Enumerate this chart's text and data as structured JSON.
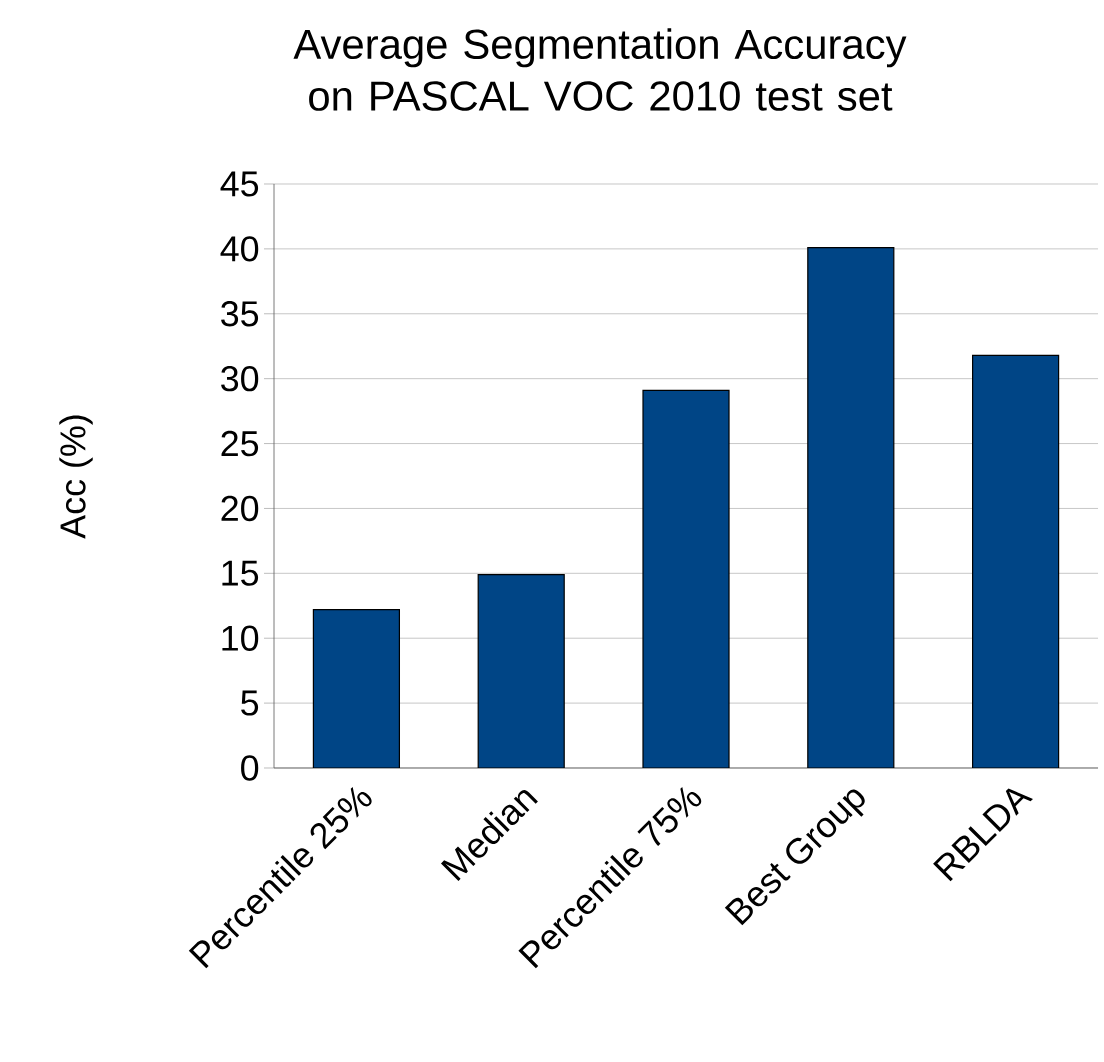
{
  "chart_data": {
    "type": "bar",
    "title": "Average Segmentation Accuracy on PASCAL VOC 2010 test set",
    "ylabel": "Acc (%)",
    "categories": [
      "Percentile 25%",
      "Median",
      "Percentile 75%",
      "Best Group",
      "RBLDA"
    ],
    "values": [
      12.2,
      14.9,
      29.1,
      40.1,
      31.8
    ],
    "color": "#004586",
    "ylim": [
      0,
      45
    ],
    "yticks": [
      0,
      5,
      10,
      15,
      20,
      25,
      30,
      35,
      40,
      45
    ],
    "grid": "y"
  }
}
